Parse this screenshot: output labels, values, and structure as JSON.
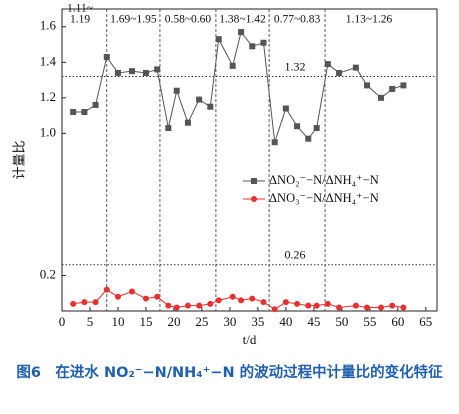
{
  "chart_data": {
    "type": "line",
    "x_label": "t/d",
    "y_label": "计量比",
    "x": [
      2,
      4,
      6,
      8,
      10,
      12.5,
      15,
      17,
      19,
      20.5,
      22.5,
      24.5,
      26.5,
      28,
      30.5,
      32,
      34,
      36,
      38,
      40,
      42,
      44,
      45.5,
      47.5,
      49.5,
      52.5,
      54.5,
      57,
      59,
      61
    ],
    "series": [
      {
        "name": "ΔNO₂⁻−N/ΔNH₄⁺−N",
        "color": "#555555",
        "marker": "square",
        "values": [
          1.12,
          1.12,
          1.16,
          1.43,
          1.34,
          1.35,
          1.34,
          1.36,
          1.03,
          1.24,
          1.06,
          1.19,
          1.15,
          1.53,
          1.38,
          1.57,
          1.49,
          1.51,
          0.95,
          1.14,
          1.04,
          0.97,
          1.03,
          1.39,
          1.34,
          1.37,
          1.27,
          1.2,
          1.25,
          1.27
        ]
      },
      {
        "name": "ΔNO₃⁻−N/ΔNH₄⁺−N",
        "color": "#e8302f",
        "marker": "circle",
        "values": [
          0.04,
          0.05,
          0.05,
          0.12,
          0.08,
          0.11,
          0.07,
          0.08,
          0.03,
          0.02,
          0.03,
          0.03,
          0.04,
          0.06,
          0.08,
          0.06,
          0.07,
          0.05,
          0.01,
          0.05,
          0.04,
          0.03,
          0.03,
          0.04,
          0.02,
          0.03,
          0.02,
          0.02,
          0.03,
          0.02
        ]
      }
    ],
    "xlim": [
      0,
      67
    ],
    "xticks": [
      0,
      5,
      10,
      15,
      20,
      25,
      30,
      35,
      40,
      45,
      50,
      55,
      60,
      65
    ],
    "ylim": [
      0,
      1.7
    ],
    "yticks": [
      0.2,
      {
        "value": 1.0,
        "label": "1.0"
      },
      1.2,
      1.4,
      1.6
    ],
    "hlines": [
      1.32,
      0.26
    ],
    "vlines": [
      8,
      17.5,
      27.5,
      37,
      47
    ],
    "annotations": [
      [
        "1.11~",
        "1.19"
      ],
      [
        "1.69~1.95"
      ],
      [
        "0.58~0.60"
      ],
      [
        "1.38~1.42"
      ],
      [
        "0.77~0.83"
      ],
      [
        "1.13~1.26"
      ]
    ]
  },
  "caption": "图6　在进水 NO₂⁻−N/NH₄⁺−N 的波动过程中计量比的变化特征"
}
